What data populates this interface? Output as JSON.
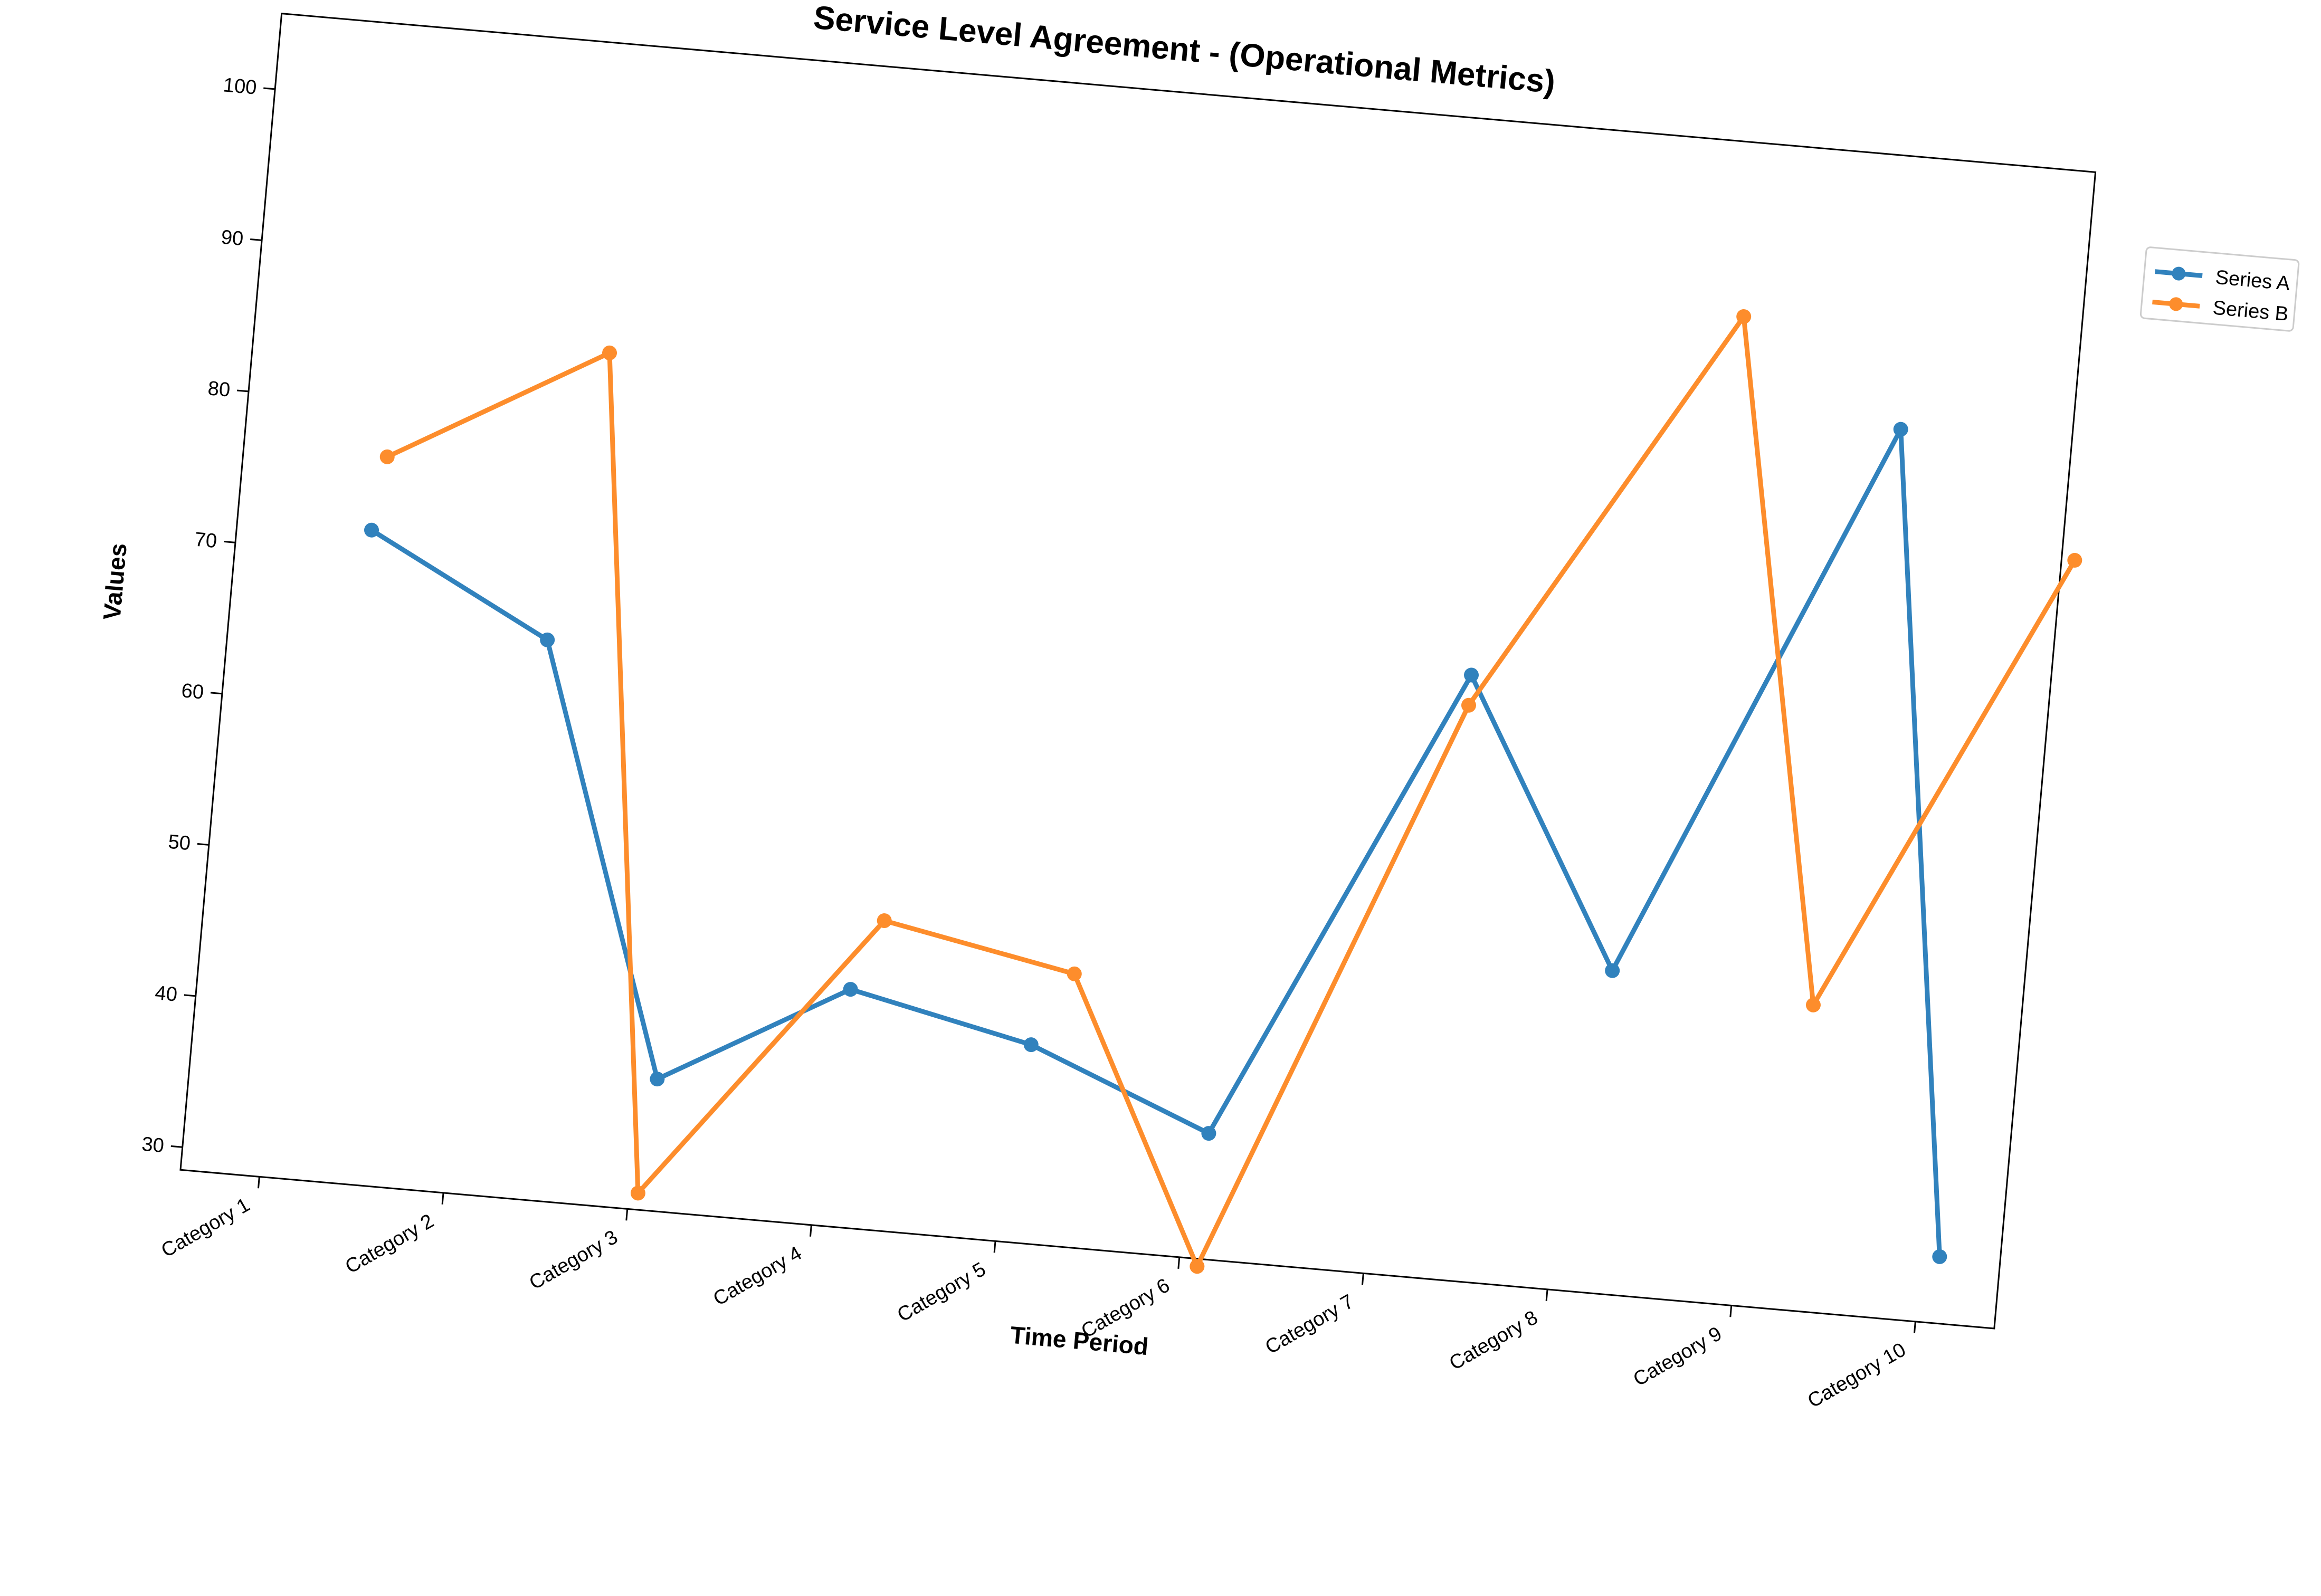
{
  "chart_data": {
    "type": "line",
    "title": "Service Level Agreement - (Operational Metrics)",
    "xlabel": "Time Period",
    "ylabel": "Values",
    "categories": [
      "Category 1",
      "Category 2",
      "Category 3",
      "Category 4",
      "Category 5",
      "Category 6",
      "Category 7",
      "Category 8",
      "Category 9",
      "Category 10"
    ],
    "ylim": [
      28.5,
      105
    ],
    "yticks": [
      30,
      40,
      50,
      60,
      70,
      80,
      90,
      100
    ],
    "grid": false,
    "legend_position": "outside-right",
    "rotation_degrees": 5,
    "series": [
      {
        "name": "Series A",
        "color": "#3182bd",
        "x": [
          0.3,
          1.3,
          2.1,
          3.1,
          4.1,
          5.1,
          6.3,
          7.2,
          8.5,
          9.1
        ],
        "values": [
          71.6,
          65.4,
          37.2,
          44.2,
          41.6,
          36.8,
          68.4,
          49.8,
          87.0,
          32.9
        ]
      },
      {
        "name": "Series B",
        "color": "#fd8d2c",
        "x": [
          0.35,
          1.5,
          2.05,
          3.25,
          4.3,
          5.1,
          6.3,
          7.6,
          8.3,
          9.5
        ],
        "values": [
          76.5,
          84.6,
          29.6,
          48.9,
          46.5,
          28.0,
          66.4,
          93.5,
          48.7,
          79.4
        ]
      }
    ]
  }
}
